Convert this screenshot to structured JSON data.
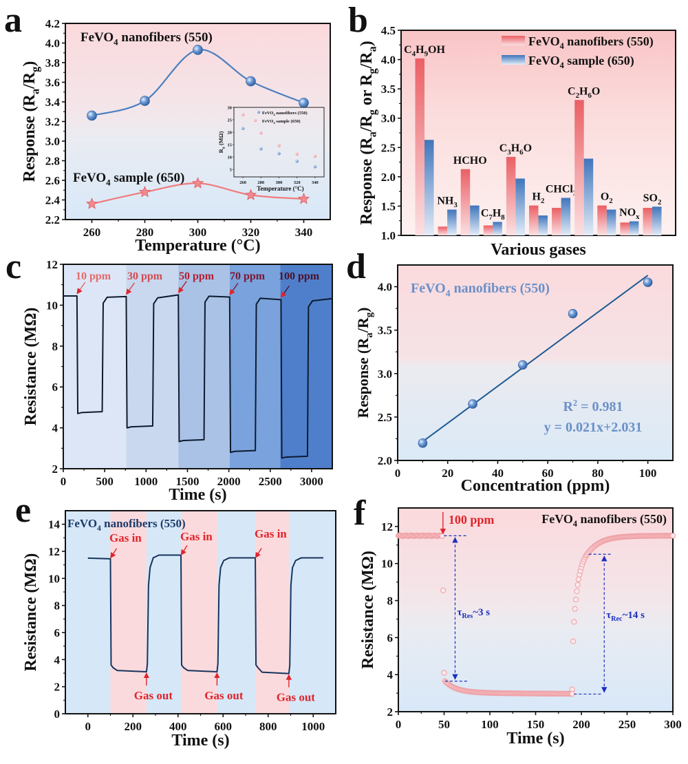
{
  "chart_data": [
    {
      "panel": "a",
      "type": "line",
      "xlabel": "Temperature (°C)",
      "ylabel": "Response (Ra/Rg)",
      "xlim": [
        250,
        350
      ],
      "ylim": [
        2.2,
        4.2
      ],
      "xticks": [
        260,
        280,
        300,
        320,
        340
      ],
      "yticks": [
        2.2,
        2.4,
        2.6,
        2.8,
        3.0,
        3.2,
        3.4,
        3.6,
        3.8,
        4.0,
        4.2
      ],
      "x": [
        260,
        280,
        300,
        320,
        340
      ],
      "series": [
        {
          "name": "FeVO4 nanofibers (550)",
          "label_main": "FeVO",
          "label_sub": "4",
          "label_rest": " nanofibers (550)",
          "values": [
            3.26,
            3.41,
            3.93,
            3.61,
            3.39
          ],
          "color": "#4a7fc0",
          "marker": "sphere"
        },
        {
          "name": "FeVO4 sample (650)",
          "label_main": "FeVO",
          "label_sub": "4",
          "label_rest": " sample (650)",
          "values": [
            2.36,
            2.48,
            2.57,
            2.45,
            2.41
          ],
          "color": "#f07a7c",
          "marker": "star"
        }
      ],
      "inset": {
        "type": "scatter",
        "xlabel": "Temperature (°C)",
        "ylabel": "Ra (MΩ)",
        "xlim": [
          250,
          350
        ],
        "ylim": [
          2,
          30
        ],
        "xticks": [
          260,
          280,
          300,
          320,
          340
        ],
        "yticks": [
          5,
          10,
          15,
          20,
          25,
          30
        ],
        "legend": [
          "FeVO4 nanofibers (550)",
          "FeVO4 sample (650)"
        ],
        "x": [
          260,
          280,
          300,
          320,
          340
        ],
        "series": [
          {
            "name": "FeVO4 nanofibers (550)",
            "values": [
              21.5,
              13.3,
              11.4,
              8.3,
              6.1
            ],
            "color": "#5b8fd0"
          },
          {
            "name": "FeVO4 sample (650)",
            "values": [
              27.1,
              19.7,
              14.6,
              11.2,
              10.3
            ],
            "color": "#f08a8c"
          }
        ]
      }
    },
    {
      "panel": "b",
      "type": "bar",
      "xlabel": "Various gases",
      "ylabel": "Response (Ra/Rg or Rg/Ra)",
      "ylim": [
        1.0,
        4.5
      ],
      "yticks": [
        1.0,
        1.5,
        2.0,
        2.5,
        3.0,
        3.5,
        4.0,
        4.5
      ],
      "legend_placement": "top-right",
      "categories": [
        "C4H9OH",
        "NH3",
        "HCHO",
        "C7H8",
        "C3H6O",
        "H2",
        "CHCl3",
        "C2H6O",
        "O2",
        "NOx",
        "SO2"
      ],
      "category_labels": [
        [
          [
            "C",
            ""
          ],
          [
            "4",
            "s"
          ],
          [
            "H",
            ""
          ],
          [
            "9",
            "s"
          ],
          [
            "OH",
            ""
          ]
        ],
        [
          [
            "NH",
            ""
          ],
          [
            "3",
            "s"
          ]
        ],
        [
          [
            "HCHO",
            ""
          ]
        ],
        [
          [
            "C",
            ""
          ],
          [
            "7",
            "s"
          ],
          [
            "H",
            ""
          ],
          [
            "8",
            "s"
          ]
        ],
        [
          [
            "C",
            ""
          ],
          [
            "3",
            "s"
          ],
          [
            "H",
            ""
          ],
          [
            "6",
            "s"
          ],
          [
            "O",
            ""
          ]
        ],
        [
          [
            "H",
            ""
          ],
          [
            "2",
            "s"
          ]
        ],
        [
          [
            "CHCl",
            ""
          ],
          [
            "3",
            "s"
          ]
        ],
        [
          [
            "C",
            ""
          ],
          [
            "2",
            "s"
          ],
          [
            "H",
            ""
          ],
          [
            "6",
            "s"
          ],
          [
            "O",
            ""
          ]
        ],
        [
          [
            "O",
            ""
          ],
          [
            "2",
            "s"
          ]
        ],
        [
          [
            "NO",
            ""
          ],
          [
            "x",
            "s"
          ]
        ],
        [
          [
            "SO",
            ""
          ],
          [
            "2",
            "s"
          ]
        ]
      ],
      "series": [
        {
          "name": "FeVO4 nanofibers (550)",
          "values": [
            4.02,
            1.15,
            2.13,
            1.17,
            2.34,
            1.51,
            1.47,
            3.31,
            1.51,
            1.22,
            1.47
          ],
          "color": "#e8666a"
        },
        {
          "name": "FeVO4 sample (650)",
          "values": [
            2.63,
            1.44,
            1.51,
            1.23,
            1.97,
            1.34,
            1.64,
            2.31,
            1.44,
            1.24,
            1.49
          ],
          "color": "#4a80c2"
        }
      ]
    },
    {
      "panel": "c",
      "type": "line",
      "xlabel": "Time (s)",
      "ylabel": "Resistance (MΩ)",
      "xlim": [
        0,
        3250
      ],
      "ylim": [
        2,
        12
      ],
      "xticks": [
        0,
        500,
        1000,
        1500,
        2000,
        2500,
        3000
      ],
      "yticks": [
        2,
        4,
        6,
        8,
        10,
        12
      ],
      "bands": [
        {
          "label": "10 ppm",
          "start": 0,
          "end": 760,
          "color": "#dde6f6",
          "label_color": "#e46a6a"
        },
        {
          "label": "30 ppm",
          "start": 760,
          "end": 1390,
          "color": "#c9d8ee",
          "label_color": "#d24a50"
        },
        {
          "label": "50 ppm",
          "start": 1390,
          "end": 2010,
          "color": "#a9c2e6",
          "label_color": "#b21e32"
        },
        {
          "label": "70 ppm",
          "start": 2010,
          "end": 2620,
          "color": "#7aa2dc",
          "label_color": "#7c1630"
        },
        {
          "label": "100 ppm",
          "start": 2620,
          "end": 3250,
          "color": "#4f7fcb",
          "label_color": "#4e1024"
        }
      ],
      "cycles": [
        {
          "on": 165,
          "off": 470,
          "base": 10.45,
          "low": 4.75
        },
        {
          "on": 760,
          "off": 1080,
          "base": 10.42,
          "low": 4.05
        },
        {
          "on": 1390,
          "off": 1700,
          "base": 10.5,
          "low": 3.38
        },
        {
          "on": 2010,
          "off": 2320,
          "base": 10.4,
          "low": 2.85
        },
        {
          "on": 2630,
          "off": 2950,
          "base": 10.27,
          "low": 2.57
        }
      ],
      "final_level": 10.32,
      "series": [
        {
          "name": "resistance",
          "color": "#0d1a2e"
        }
      ]
    },
    {
      "panel": "d",
      "type": "scatter",
      "xlabel": "Concentration (ppm)",
      "ylabel": "Response (Ra/Rg)",
      "xlim": [
        0,
        110
      ],
      "ylim": [
        2.0,
        4.25
      ],
      "xticks": [
        0,
        20,
        40,
        60,
        80,
        100
      ],
      "yticks": [
        2.0,
        2.5,
        3.0,
        3.5,
        4.0
      ],
      "annotation_title": "FeVO4 nanofibers (550)",
      "x": [
        10,
        30,
        50,
        70,
        100
      ],
      "series": [
        {
          "name": "FeVO4 nanofibers (550)",
          "values": [
            2.2,
            2.65,
            3.1,
            3.69,
            4.05
          ],
          "color": "#4a80c2"
        }
      ],
      "fit": {
        "slope": 0.021,
        "intercept": 2.031,
        "r2": 0.981,
        "x_range": [
          10,
          100
        ],
        "color": "#1d5a93"
      },
      "r2_text": "R² = 0.981",
      "eq_text": "y = 0.021x+2.031"
    },
    {
      "panel": "e",
      "type": "line",
      "xlabel": "Time (s)",
      "ylabel": "Resistance (MΩ)",
      "xlim": [
        -100,
        1100
      ],
      "ylim": [
        0,
        15
      ],
      "xticks": [
        0,
        200,
        400,
        600,
        800,
        1000
      ],
      "yticks": [
        0,
        2,
        4,
        6,
        8,
        10,
        12,
        14
      ],
      "annotation_title": "FeVO4 nanofibers (550)",
      "gas_in_label": "Gas in",
      "gas_out_label": "Gas out",
      "cycles": [
        {
          "on": 100,
          "off": 260,
          "base": 11.5,
          "low": 3.1
        },
        {
          "on": 413,
          "off": 573,
          "base": 11.72,
          "low": 3.1
        },
        {
          "on": 743,
          "off": 892,
          "base": 11.52,
          "low": 2.97
        }
      ],
      "start": 0,
      "end": 1045,
      "final_level": 11.52,
      "series": [
        {
          "name": "FeVO4 nanofibers (550)",
          "color": "#17335e"
        }
      ]
    },
    {
      "panel": "f",
      "type": "scatter",
      "xlabel": "Time (s)",
      "ylabel": "Resistance (MΩ)",
      "xlim": [
        0,
        300
      ],
      "ylim": [
        2,
        13
      ],
      "xticks": [
        0,
        50,
        100,
        150,
        200,
        250,
        300
      ],
      "yticks": [
        2,
        4,
        6,
        8,
        10,
        12
      ],
      "annotation_title": "FeVO4 nanofibers (550)",
      "injection_label": "100 ppm",
      "gas_on": 48,
      "gas_off": 190,
      "base": 11.5,
      "low": 2.95,
      "transient_points": [
        [
          49,
          8.55
        ],
        [
          50,
          4.1
        ],
        [
          51,
          3.65
        ],
        [
          190,
          3.2
        ],
        [
          191,
          5.8
        ],
        [
          192,
          6.85
        ],
        [
          193,
          7.55
        ],
        [
          194,
          8.05
        ],
        [
          195,
          8.5
        ],
        [
          196,
          8.85
        ],
        [
          197,
          9.15
        ],
        [
          198,
          9.4
        ],
        [
          199,
          9.6
        ],
        [
          200,
          9.8
        ],
        [
          201,
          9.95
        ],
        [
          202,
          10.1
        ],
        [
          203,
          10.22
        ],
        [
          204,
          10.33
        ],
        [
          205,
          10.43
        ]
      ],
      "res_time": {
        "label_tau": "τ",
        "label_sub": "Res",
        "label_val": "~3 s",
        "x": 62,
        "y_top": 11.5,
        "y_bottom": 3.65
      },
      "rec_time": {
        "label_tau": "τ",
        "label_sub": "Rec",
        "label_val": "~14 s",
        "x": 225,
        "y_top": 10.5,
        "y_bottom": 2.95
      },
      "series": [
        {
          "name": "FeVO4 nanofibers (550)",
          "color": "#f0a0a6"
        }
      ]
    }
  ],
  "panel_letters": [
    "a",
    "b",
    "c",
    "d",
    "e",
    "f"
  ]
}
